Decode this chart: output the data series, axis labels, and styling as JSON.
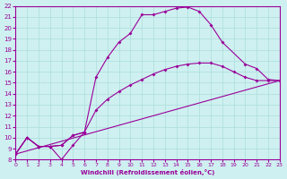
{
  "xlabel": "Windchill (Refroidissement éolien,°C)",
  "bg_color": "#cff0f0",
  "grid_color": "#aadddd",
  "line_color": "#990099",
  "xlim": [
    0,
    23
  ],
  "ylim": [
    8,
    22
  ],
  "xticks": [
    0,
    1,
    2,
    3,
    4,
    5,
    6,
    7,
    8,
    9,
    10,
    11,
    12,
    13,
    14,
    15,
    16,
    17,
    18,
    19,
    20,
    21,
    22,
    23
  ],
  "yticks": [
    8,
    9,
    10,
    11,
    12,
    13,
    14,
    15,
    16,
    17,
    18,
    19,
    20,
    21,
    22
  ],
  "curve1_x": [
    0,
    1,
    2,
    3,
    4,
    5,
    6,
    7,
    8,
    9,
    10,
    11,
    12,
    13,
    14,
    15,
    16,
    17,
    18,
    20,
    21,
    22,
    23
  ],
  "curve1_y": [
    8.5,
    10.0,
    9.2,
    9.2,
    9.3,
    10.2,
    10.5,
    15.5,
    17.3,
    18.7,
    19.5,
    21.2,
    21.2,
    21.5,
    21.8,
    21.9,
    21.5,
    20.3,
    18.7,
    16.7,
    16.3,
    15.3,
    15.2
  ],
  "curve2_x": [
    0,
    1,
    2,
    3,
    4,
    5,
    6,
    7,
    8,
    9,
    10,
    11,
    12,
    13,
    14,
    15,
    16,
    17,
    18,
    19,
    20,
    21,
    22,
    23
  ],
  "curve2_y": [
    8.5,
    10.0,
    9.2,
    9.2,
    9.3,
    10.2,
    10.5,
    12.5,
    13.5,
    14.2,
    14.8,
    15.3,
    15.8,
    16.2,
    16.5,
    16.7,
    16.8,
    16.8,
    16.5,
    16.0,
    15.5,
    15.2,
    15.2,
    15.2
  ],
  "curve3_x": [
    0,
    23
  ],
  "curve3_y": [
    8.5,
    15.2
  ],
  "curve4_x": [
    0,
    1,
    2,
    3,
    4,
    5,
    6
  ],
  "curve4_y": [
    8.5,
    10.0,
    9.2,
    9.2,
    8.0,
    9.3,
    10.5
  ]
}
